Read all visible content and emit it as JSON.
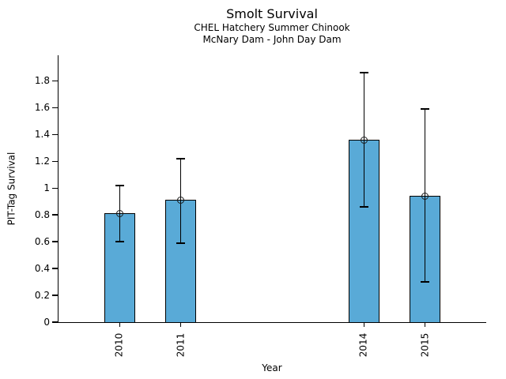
{
  "chart_data": {
    "type": "bar",
    "title": "Smolt Survival",
    "subtitle1": "CHEL Hatchery Summer Chinook",
    "subtitle2": "McNary Dam - John Day Dam",
    "xlabel": "Year",
    "ylabel": "PIT-Tag Survival",
    "categories": [
      2010,
      2011,
      2014,
      2015
    ],
    "values": [
      0.81,
      0.91,
      1.36,
      0.94
    ],
    "error_low": [
      0.6,
      0.59,
      0.86,
      0.3
    ],
    "error_high": [
      1.02,
      1.22,
      1.86,
      1.59
    ],
    "yticks": [
      0,
      0.2,
      0.4,
      0.6,
      0.8,
      1,
      1.2,
      1.4,
      1.6,
      1.8
    ],
    "xlim": [
      2009,
      2016
    ],
    "ylim": [
      0,
      1.99
    ],
    "grid": false,
    "legend": false,
    "marker": "open-circle",
    "bar_color": "#59AAD7",
    "bar_border_color": "#000000",
    "axis_color": "#000000",
    "background_color": "#ffffff"
  }
}
